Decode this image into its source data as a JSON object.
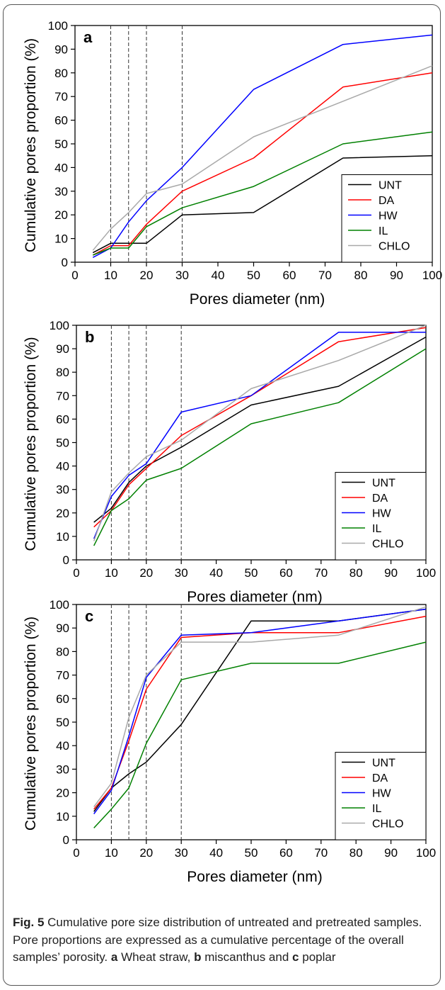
{
  "colors": {
    "UNT": "#000000",
    "DA": "#ff0000",
    "HW": "#0000ff",
    "IL": "#008000",
    "CHLO": "#a9a9a9"
  },
  "chart_data": [
    {
      "type": "line",
      "panel": "a",
      "xlabel": "Pores diameter (nm)",
      "ylabel": "Cumulative pores proportion (%)",
      "xlim": [
        0,
        100
      ],
      "ylim": [
        0,
        100
      ],
      "xticks": [
        0,
        10,
        20,
        30,
        40,
        50,
        60,
        70,
        80,
        90,
        100
      ],
      "yticks": [
        0,
        10,
        20,
        30,
        40,
        50,
        60,
        70,
        80,
        90,
        100
      ],
      "vlines": [
        10,
        15,
        20,
        30
      ],
      "legend_position": "bottom-right",
      "x": [
        5,
        10,
        15,
        20,
        30,
        50,
        75,
        100
      ],
      "series": [
        {
          "name": "UNT",
          "values": [
            4,
            8,
            8,
            8,
            20,
            21,
            44,
            45
          ]
        },
        {
          "name": "DA",
          "values": [
            3,
            7,
            7,
            16,
            30,
            44,
            74,
            80
          ]
        },
        {
          "name": "HW",
          "values": [
            2,
            6,
            17,
            26,
            40,
            73,
            92,
            96
          ]
        },
        {
          "name": "IL",
          "values": [
            3,
            6,
            6,
            15,
            23,
            32,
            50,
            55
          ]
        },
        {
          "name": "CHLO",
          "values": [
            5,
            14,
            21,
            29,
            33,
            53,
            68,
            83
          ]
        }
      ]
    },
    {
      "type": "line",
      "panel": "b",
      "xlabel": "Pores diameter (nm)",
      "ylabel": "Cumulative pores proportion (%)",
      "xlim": [
        0,
        100
      ],
      "ylim": [
        0,
        100
      ],
      "xticks": [
        0,
        10,
        20,
        30,
        40,
        50,
        60,
        70,
        80,
        90,
        100
      ],
      "yticks": [
        0,
        10,
        20,
        30,
        40,
        50,
        60,
        70,
        80,
        90,
        100
      ],
      "vlines": [
        10,
        15,
        20,
        30
      ],
      "legend_position": "bottom-right",
      "x": [
        5,
        10,
        15,
        20,
        30,
        50,
        75,
        100
      ],
      "series": [
        {
          "name": "UNT",
          "values": [
            16,
            22,
            33,
            40,
            48,
            66,
            74,
            95
          ]
        },
        {
          "name": "DA",
          "values": [
            14,
            21,
            32,
            39,
            53,
            70,
            93,
            99
          ]
        },
        {
          "name": "HW",
          "values": [
            9,
            27,
            36,
            41,
            63,
            70,
            97,
            97
          ]
        },
        {
          "name": "IL",
          "values": [
            6,
            21,
            26,
            34,
            39,
            58,
            67,
            90
          ]
        },
        {
          "name": "CHLO",
          "values": [
            8,
            29,
            37,
            44,
            51,
            73,
            85,
            100
          ]
        }
      ]
    },
    {
      "type": "line",
      "panel": "c",
      "xlabel": "Pores diameter (nm)",
      "ylabel": "Cumulative pores proportion (%)",
      "xlim": [
        0,
        100
      ],
      "ylim": [
        0,
        100
      ],
      "xticks": [
        0,
        10,
        20,
        30,
        40,
        50,
        60,
        70,
        80,
        90,
        100
      ],
      "yticks": [
        0,
        10,
        20,
        30,
        40,
        50,
        60,
        70,
        80,
        90,
        100
      ],
      "vlines": [
        10,
        15,
        20,
        30
      ],
      "legend_position": "bottom-right",
      "x": [
        5,
        10,
        15,
        20,
        30,
        50,
        75,
        100
      ],
      "series": [
        {
          "name": "UNT",
          "values": [
            12,
            22,
            28,
            33,
            49,
            93,
            93,
            98
          ]
        },
        {
          "name": "DA",
          "values": [
            13,
            22,
            42,
            64,
            86,
            88,
            88,
            95
          ]
        },
        {
          "name": "HW",
          "values": [
            11,
            21,
            44,
            69,
            87,
            88,
            93,
            98
          ]
        },
        {
          "name": "IL",
          "values": [
            5,
            13,
            22,
            41,
            68,
            75,
            75,
            84
          ]
        },
        {
          "name": "CHLO",
          "values": [
            14,
            24,
            52,
            70,
            84,
            84,
            87,
            99
          ]
        }
      ]
    }
  ],
  "caption": {
    "fig_label": "Fig. 5",
    "main_text": "Cumulative pore size distribution of untreated and pretreated samples. Pore proportions are expressed as a cumulative percentage of the overall samples’ porosity.",
    "parts": [
      {
        "tag": "a",
        "text": "Wheat straw,"
      },
      {
        "tag": "b",
        "text": "miscanthus and"
      },
      {
        "tag": "c",
        "text": "poplar"
      }
    ]
  }
}
